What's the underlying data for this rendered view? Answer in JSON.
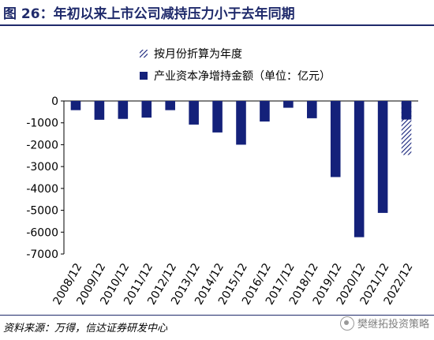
{
  "header": {
    "title": "图 26：年初以来上市公司减持压力小于去年同期"
  },
  "footer": {
    "source": "资料来源：万得，信达证券研发中心",
    "watermark": "樊继拓投资策略"
  },
  "colors": {
    "bar": "#14217a",
    "title": "#1f2a6b"
  },
  "chart_data": {
    "type": "bar",
    "title": "",
    "xlabel": "",
    "ylabel": "",
    "ylim": [
      -7000,
      0
    ],
    "yticks": [
      0,
      -1000,
      -2000,
      -3000,
      -4000,
      -5000,
      -6000,
      -7000
    ],
    "ytick_labels": [
      "0",
      "-1000",
      "-2000",
      "-3000",
      "-4000",
      "-5000",
      "-6000",
      "-7000"
    ],
    "categories": [
      "2008/12",
      "2009/12",
      "2010/12",
      "2011/12",
      "2012/12",
      "2013/12",
      "2014/12",
      "2015/12",
      "2016/12",
      "2017/12",
      "2018/12",
      "2019/12",
      "2020/12",
      "2021/12",
      "2022/12"
    ],
    "grid": false,
    "legend_position": "top-right",
    "series": [
      {
        "name": "产业资本净增持金额（单位：亿元）",
        "style": "solid",
        "values": [
          -420,
          -860,
          -820,
          -760,
          -420,
          -1080,
          -1440,
          -2000,
          -940,
          -310,
          -790,
          -3480,
          -6230,
          -5120,
          -850
        ]
      },
      {
        "name": "按月份折算为年度",
        "style": "hatched",
        "values": [
          null,
          null,
          null,
          null,
          null,
          null,
          null,
          null,
          null,
          null,
          null,
          null,
          null,
          null,
          -2470
        ]
      }
    ]
  }
}
